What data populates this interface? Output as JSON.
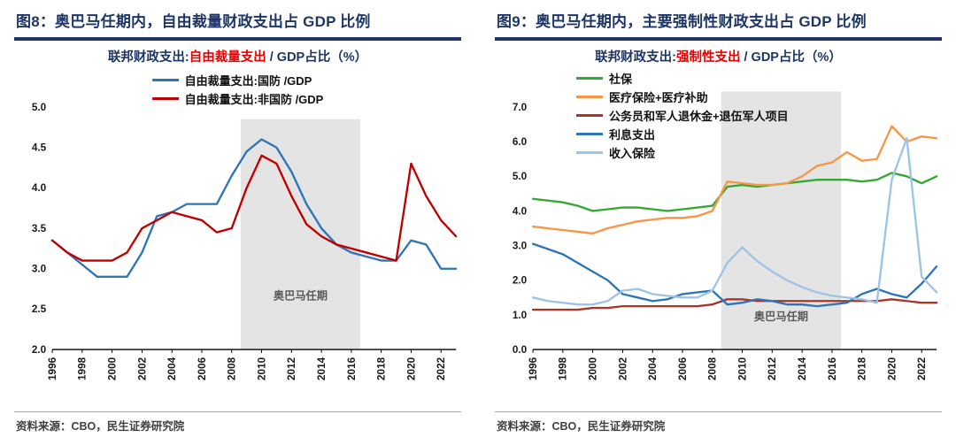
{
  "panels": [
    {
      "title": "图8：奥巴马任期内，自由裁量财政支出占 GDP 比例",
      "subtitle": {
        "prefix": "联邦财政支出:",
        "highlight": "自由裁量支出",
        "suffix": " / GDP占比（%）"
      },
      "source": "资料来源：CBO，民生证券研究院"
    },
    {
      "title": "图9：奥巴马任期内，主要强制性财政支出占 GDP 比例",
      "subtitle": {
        "prefix": "联邦财政支出:",
        "highlight": "强制性支出",
        "suffix": " / GDP占比（%）"
      },
      "source": "资料来源：CBO，民生证券研究院"
    }
  ],
  "colors": {
    "title_navy": "#1e3667",
    "highlight_red": "#e60000",
    "band_gray": "#e4e4e4",
    "axis_black": "#000000"
  },
  "chart_data": [
    {
      "type": "line",
      "title": "联邦财政支出:自由裁量支出 / GDP占比（%）",
      "xlabel": "",
      "ylabel": "",
      "x": [
        1996,
        1997,
        1998,
        1999,
        2000,
        2001,
        2002,
        2003,
        2004,
        2005,
        2006,
        2007,
        2008,
        2009,
        2010,
        2011,
        2012,
        2013,
        2014,
        2015,
        2016,
        2017,
        2018,
        2019,
        2020,
        2021,
        2022,
        2023
      ],
      "xticks": [
        1996,
        1998,
        2000,
        2002,
        2004,
        2006,
        2008,
        2010,
        2012,
        2014,
        2016,
        2018,
        2020,
        2022
      ],
      "ylim": [
        2.0,
        5.0
      ],
      "ytick_step": 0.5,
      "ytick_decimals": 1,
      "grid": false,
      "legend_position": "top-center",
      "shade": {
        "from": 2008.6,
        "to": 2016.6,
        "top_value": 4.85,
        "label": "奥巴马任期",
        "label_value": 2.62
      },
      "series": [
        {
          "name": "自由裁量支出:国防 /GDP",
          "color": "#2e75b6",
          "values": [
            3.35,
            3.2,
            3.05,
            2.9,
            2.9,
            2.9,
            3.2,
            3.65,
            3.7,
            3.8,
            3.8,
            3.8,
            4.15,
            4.45,
            4.6,
            4.5,
            4.2,
            3.8,
            3.5,
            3.3,
            3.2,
            3.15,
            3.1,
            3.1,
            3.35,
            3.3,
            3.0,
            3.0
          ]
        },
        {
          "name": "自由裁量支出:非国防 /GDP",
          "color": "#c00000",
          "values": [
            3.35,
            3.2,
            3.1,
            3.1,
            3.1,
            3.2,
            3.5,
            3.6,
            3.7,
            3.65,
            3.6,
            3.45,
            3.5,
            4.0,
            4.4,
            4.3,
            3.9,
            3.55,
            3.4,
            3.3,
            3.25,
            3.2,
            3.15,
            3.1,
            4.3,
            3.9,
            3.6,
            3.4
          ]
        }
      ]
    },
    {
      "type": "line",
      "title": "联邦财政支出:强制性支出 / GDP占比（%）",
      "xlabel": "",
      "ylabel": "",
      "x": [
        1996,
        1997,
        1998,
        1999,
        2000,
        2001,
        2002,
        2003,
        2004,
        2005,
        2006,
        2007,
        2008,
        2009,
        2010,
        2011,
        2012,
        2013,
        2014,
        2015,
        2016,
        2017,
        2018,
        2019,
        2020,
        2021,
        2022,
        2023
      ],
      "xticks": [
        1996,
        1998,
        2000,
        2002,
        2004,
        2006,
        2008,
        2010,
        2012,
        2014,
        2016,
        2018,
        2020,
        2022
      ],
      "ylim": [
        0.0,
        7.0
      ],
      "ytick_step": 1.0,
      "ytick_decimals": 1,
      "grid": false,
      "legend_position": "top-left",
      "shade": {
        "from": 2008.6,
        "to": 2016.6,
        "top_value": 7.45,
        "label": "奥巴马任期",
        "label_value": 0.85
      },
      "series": [
        {
          "name": "社保",
          "color": "#34a832",
          "values": [
            4.35,
            4.3,
            4.25,
            4.15,
            4.0,
            4.05,
            4.1,
            4.1,
            4.05,
            4.0,
            4.05,
            4.1,
            4.15,
            4.7,
            4.75,
            4.7,
            4.75,
            4.8,
            4.85,
            4.9,
            4.9,
            4.9,
            4.85,
            4.9,
            5.1,
            5.0,
            4.8,
            5.0
          ]
        },
        {
          "name": "医疗保险+医疗补助",
          "color": "#f79646",
          "values": [
            3.55,
            3.5,
            3.45,
            3.4,
            3.35,
            3.5,
            3.6,
            3.7,
            3.75,
            3.8,
            3.8,
            3.85,
            4.0,
            4.85,
            4.8,
            4.75,
            4.75,
            4.8,
            5.0,
            5.3,
            5.4,
            5.7,
            5.45,
            5.5,
            6.45,
            6.0,
            6.15,
            6.1
          ]
        },
        {
          "name": "公务员和军人退休金+退伍军人项目",
          "color": "#a8342a",
          "values": [
            1.15,
            1.15,
            1.15,
            1.15,
            1.2,
            1.2,
            1.25,
            1.25,
            1.25,
            1.25,
            1.25,
            1.25,
            1.3,
            1.45,
            1.45,
            1.4,
            1.4,
            1.4,
            1.4,
            1.4,
            1.4,
            1.4,
            1.4,
            1.4,
            1.45,
            1.4,
            1.35,
            1.35
          ]
        },
        {
          "name": "利息支出",
          "color": "#2e75b6",
          "values": [
            3.05,
            2.9,
            2.75,
            2.5,
            2.25,
            2.0,
            1.6,
            1.5,
            1.4,
            1.45,
            1.6,
            1.65,
            1.7,
            1.3,
            1.35,
            1.45,
            1.4,
            1.3,
            1.3,
            1.25,
            1.3,
            1.35,
            1.6,
            1.75,
            1.6,
            1.5,
            1.9,
            2.4
          ]
        },
        {
          "name": "收入保险",
          "color": "#9dc3e6",
          "values": [
            1.5,
            1.4,
            1.35,
            1.3,
            1.3,
            1.4,
            1.7,
            1.75,
            1.6,
            1.55,
            1.5,
            1.5,
            1.7,
            2.5,
            2.95,
            2.55,
            2.25,
            2.0,
            1.8,
            1.65,
            1.55,
            1.5,
            1.45,
            1.35,
            4.9,
            6.1,
            2.1,
            1.65
          ]
        }
      ]
    }
  ]
}
